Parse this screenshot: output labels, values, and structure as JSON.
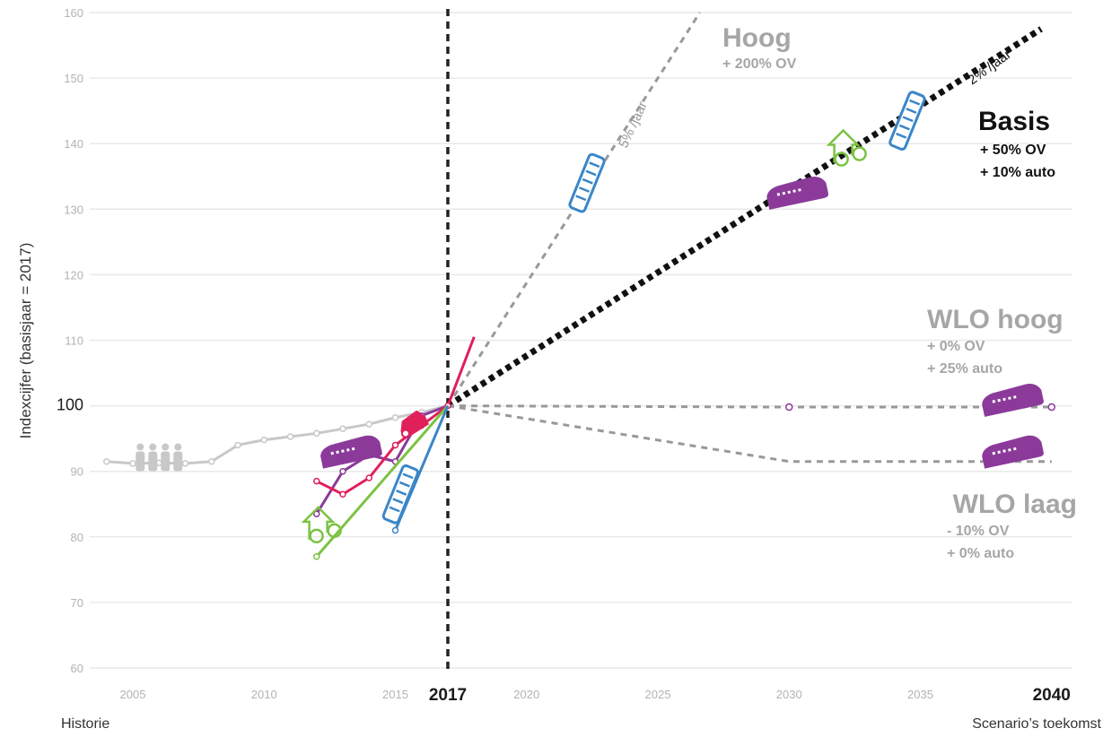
{
  "chart_data": {
    "type": "line",
    "ylabel": "Indexcijfer (basisjaar = 2017)",
    "ylim": [
      60,
      160
    ],
    "yticks": [
      60,
      70,
      80,
      90,
      100,
      110,
      120,
      130,
      140,
      150,
      160
    ],
    "xlim": [
      2004,
      2040
    ],
    "xticks": [
      {
        "value": 2005,
        "label": "2005"
      },
      {
        "value": 2010,
        "label": "2010"
      },
      {
        "value": 2015,
        "label": "2015"
      },
      {
        "value": 2017,
        "label": "2017",
        "major": true
      },
      {
        "value": 2020,
        "label": "2020"
      },
      {
        "value": 2025,
        "label": "2025"
      },
      {
        "value": 2030,
        "label": "2030"
      },
      {
        "value": 2035,
        "label": "2035"
      },
      {
        "value": 2040,
        "label": "2040",
        "major": true
      }
    ],
    "grid": true,
    "base_year_marker": 2017,
    "footer_left": "Historie",
    "footer_right": "Scenario’s toekomst",
    "history": [
      {
        "mode": "population",
        "color": "#c8c8c8",
        "x": [
          2004,
          2005,
          2006,
          2007,
          2008,
          2009,
          2010,
          2011,
          2012,
          2013,
          2014,
          2015,
          2016,
          2017
        ],
        "y": [
          91.5,
          91.2,
          91.3,
          91.2,
          91.5,
          94.0,
          94.8,
          95.3,
          95.8,
          96.5,
          97.2,
          98.2,
          99.0,
          100
        ]
      },
      {
        "mode": "train",
        "color": "#8b3a9a",
        "x": [
          2012,
          2013,
          2014,
          2015,
          2016,
          2017
        ],
        "y": [
          83.5,
          90.0,
          92.5,
          91.5,
          98.5,
          100
        ]
      },
      {
        "mode": "car",
        "color": "#e0205a",
        "x": [
          2012,
          2013,
          2014,
          2015,
          2016,
          2017,
          2018
        ],
        "y": [
          88.5,
          86.5,
          89.0,
          94.0,
          97.0,
          100,
          110.5
        ]
      },
      {
        "mode": "bicycle",
        "color": "#7cc242",
        "x": [
          2012,
          2017
        ],
        "y": [
          77.0,
          100
        ]
      },
      {
        "mode": "bus",
        "color": "#3a86c8",
        "x": [
          2015,
          2017
        ],
        "y": [
          81.0,
          100
        ]
      }
    ],
    "series": [
      {
        "name": "Hoog",
        "sublines": [
          "+ 200% OV"
        ],
        "rate": "5% /jaar",
        "color": "#999999",
        "style": "dashed",
        "x": [
          2017,
          2026.6
        ],
        "y": [
          100,
          160
        ]
      },
      {
        "name": "Basis",
        "sublines": [
          "+ 50% OV",
          "+ 10% auto"
        ],
        "rate": "2% /jaar",
        "color": "#111111",
        "style": "dotted-bold",
        "x": [
          2017,
          2039.6
        ],
        "y": [
          100,
          157.5
        ]
      },
      {
        "name": "WLO hoog",
        "sublines": [
          "+ 0% OV",
          "+ 25% auto"
        ],
        "color": "#999999",
        "style": "dashed",
        "x": [
          2017,
          2030,
          2040
        ],
        "y": [
          100,
          99.8,
          99.8
        ]
      },
      {
        "name": "WLO laag",
        "sublines": [
          "- 10% OV",
          "+ 0% auto"
        ],
        "color": "#999999",
        "style": "dashed",
        "x": [
          2017,
          2030,
          2040
        ],
        "y": [
          100,
          91.5,
          91.5
        ]
      }
    ],
    "icons": [
      {
        "name": "population-icon",
        "x": 2006.0,
        "y": 91.8,
        "color": "#c8c8c8"
      },
      {
        "name": "train-icon",
        "x": 2013.3,
        "y": 93.0,
        "color": "#8b3a9a"
      },
      {
        "name": "car-icon",
        "x": 2015.7,
        "y": 97.0,
        "color": "#e0205a"
      },
      {
        "name": "bus-icon",
        "x": 2015.2,
        "y": 86.5,
        "color": "#3a86c8"
      },
      {
        "name": "bicycle-icon",
        "x": 2012.2,
        "y": 81.5,
        "color": "#7cc242"
      },
      {
        "name": "bus-icon",
        "x": 2022.3,
        "y": 134.0,
        "color": "#3a86c8"
      },
      {
        "name": "train-icon",
        "x": 2030.3,
        "y": 132.5,
        "color": "#8b3a9a"
      },
      {
        "name": "bicycle-icon",
        "x": 2032.2,
        "y": 139.0,
        "color": "#7cc242"
      },
      {
        "name": "bus-icon",
        "x": 2034.5,
        "y": 143.5,
        "color": "#3a86c8"
      },
      {
        "name": "train-icon",
        "x": 2038.5,
        "y": 100.9,
        "color": "#8b3a9a"
      },
      {
        "name": "train-icon",
        "x": 2038.5,
        "y": 93.0,
        "color": "#8b3a9a"
      }
    ]
  }
}
